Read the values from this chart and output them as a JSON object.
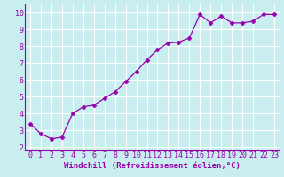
{
  "x": [
    0,
    1,
    2,
    3,
    4,
    5,
    6,
    7,
    8,
    9,
    10,
    11,
    12,
    13,
    14,
    15,
    16,
    17,
    18,
    19,
    20,
    21,
    22,
    23
  ],
  "y": [
    3.4,
    2.8,
    2.5,
    2.6,
    4.0,
    4.4,
    4.5,
    4.9,
    5.3,
    5.9,
    6.5,
    7.2,
    7.8,
    8.2,
    8.25,
    8.5,
    9.9,
    9.4,
    9.8,
    9.4,
    9.4,
    9.5,
    9.9,
    9.9
  ],
  "line_color": "#9900aa",
  "marker": "D",
  "marker_size": 2.5,
  "bg_color": "#c8eef0",
  "grid_color": "#ffffff",
  "xlabel": "Windchill (Refroidissement éolien,°C)",
  "xlabel_color": "#9900aa",
  "xlabel_fontsize": 6.5,
  "ylabel_ticks": [
    2,
    3,
    4,
    5,
    6,
    7,
    8,
    9,
    10
  ],
  "xlim": [
    -0.5,
    23.5
  ],
  "ylim": [
    1.8,
    10.5
  ],
  "tick_color": "#9900aa",
  "tick_fontsize": 6.0
}
